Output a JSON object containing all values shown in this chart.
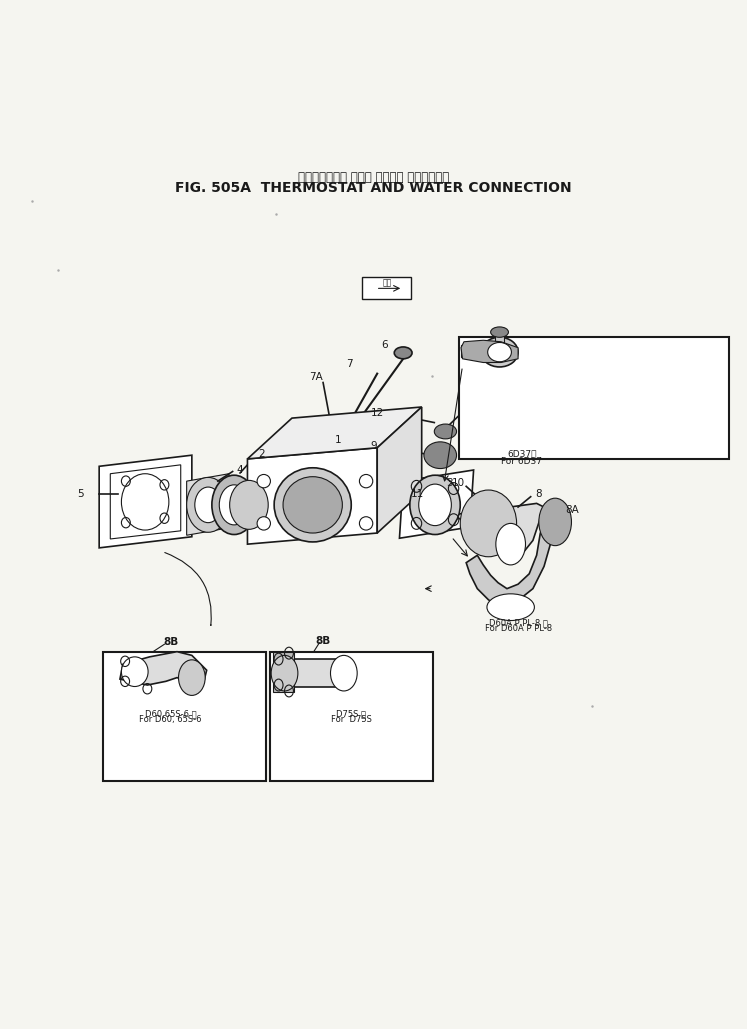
{
  "title_japanese": "サーモスタット および ウォータ コネクション",
  "title_english": "FIG. 505A  THERMOSTAT AND WATER CONNECTION",
  "bg_color": "#f5f5f0",
  "line_color": "#1a1a1a",
  "fig_width": 7.47,
  "fig_height": 10.29,
  "dpi": 100,
  "caption_top_right_line1": "6D37用",
  "caption_top_right_line2": "For 6D37",
  "caption_bottom_left_line1": "D60,65S-6 用",
  "caption_bottom_left_line2": "For D60, 65S-6",
  "caption_bottom_mid_line1": "D75S 用",
  "caption_bottom_mid_line2": "For  D75S",
  "caption_right_line1": "D60A P PL-8 用",
  "caption_right_line2": "For D60A P PL-8"
}
